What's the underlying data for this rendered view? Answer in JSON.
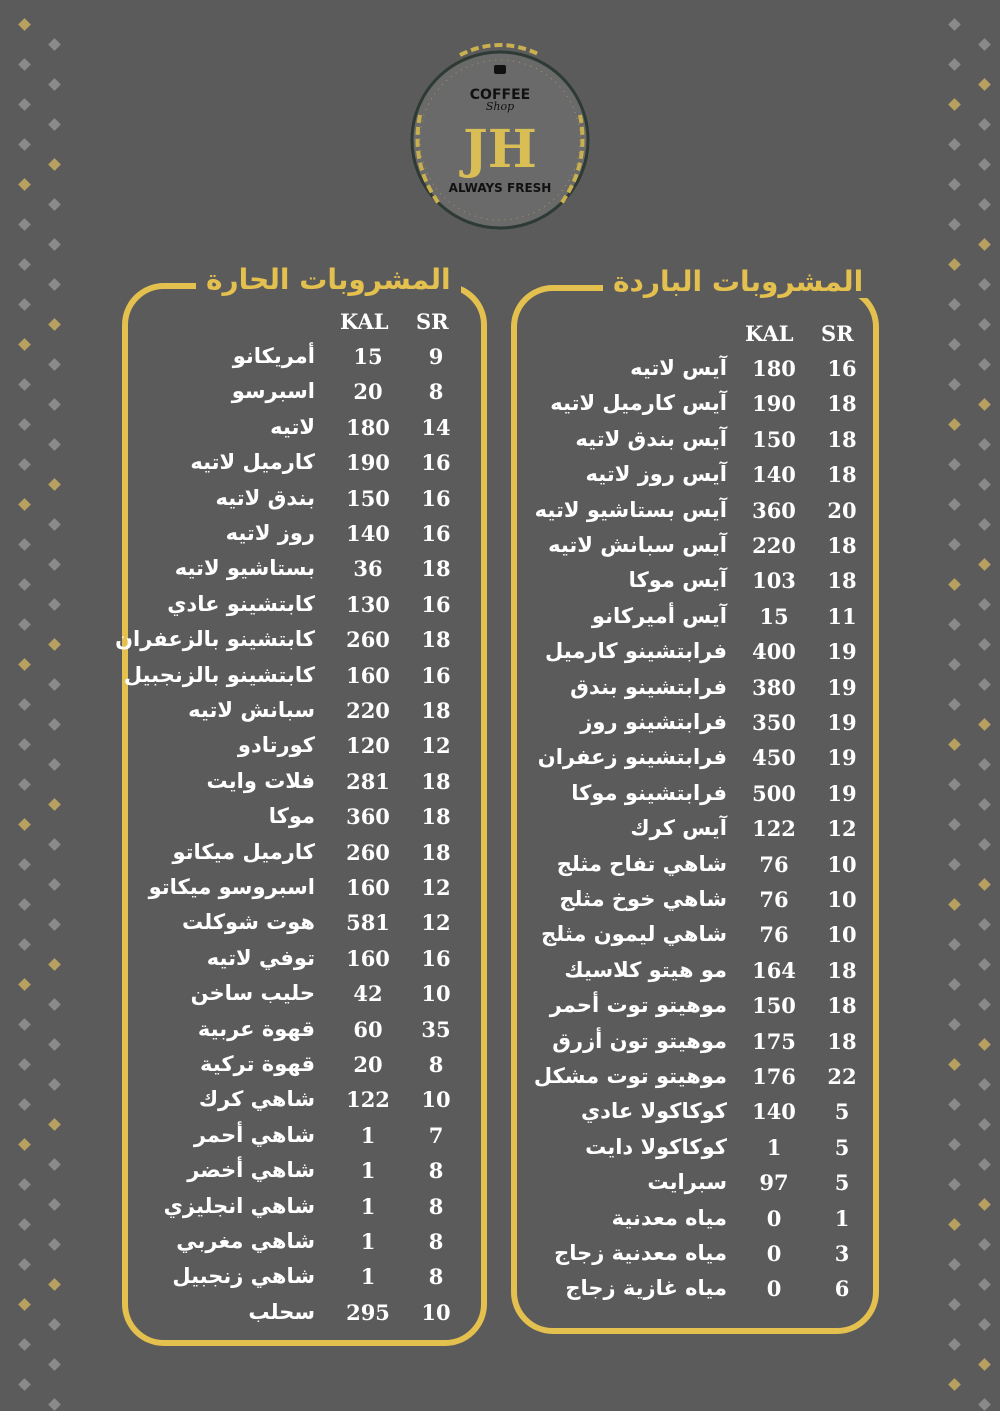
{
  "logo": {
    "top_text": "COFFEE",
    "script_text": "Shop",
    "monogram": "JH",
    "tagline": "ALWAYS FRESH",
    "icon": "coffee-cup-icon"
  },
  "colors": {
    "background": "#5b5b5b",
    "accent": "#e4c04e",
    "text": "#ffffff"
  },
  "columns": {
    "kal": "KAL",
    "sr": "SR"
  },
  "hot": {
    "title": "المشروبات الحارة",
    "items": [
      {
        "name": "أمريكانو",
        "kal": "15",
        "sr": "9"
      },
      {
        "name": "اسبرسو",
        "kal": "20",
        "sr": "8"
      },
      {
        "name": "لاتيه",
        "kal": "180",
        "sr": "14"
      },
      {
        "name": "كارميل لاتيه",
        "kal": "190",
        "sr": "16"
      },
      {
        "name": "بندق لاتيه",
        "kal": "150",
        "sr": "16"
      },
      {
        "name": "روز لاتيه",
        "kal": "140",
        "sr": "16"
      },
      {
        "name": "بستاشيو لاتيه",
        "kal": "36",
        "sr": "18"
      },
      {
        "name": "كابتشينو عادي",
        "kal": "130",
        "sr": "16"
      },
      {
        "name": "كابتشينو بالزعفران",
        "kal": "260",
        "sr": "18"
      },
      {
        "name": "كابتشينو بالزنجبيل",
        "kal": "160",
        "sr": "16"
      },
      {
        "name": "سبانش لاتيه",
        "kal": "220",
        "sr": "18"
      },
      {
        "name": "كورتادو",
        "kal": "120",
        "sr": "12"
      },
      {
        "name": "فلات وايت",
        "kal": "281",
        "sr": "18"
      },
      {
        "name": "موكا",
        "kal": "360",
        "sr": "18"
      },
      {
        "name": "كارميل ميكاتو",
        "kal": "260",
        "sr": "18"
      },
      {
        "name": "اسبروسو ميكاتو",
        "kal": "160",
        "sr": "12"
      },
      {
        "name": "هوت شوكلت",
        "kal": "581",
        "sr": "12"
      },
      {
        "name": "توفي لاتيه",
        "kal": "160",
        "sr": "16"
      },
      {
        "name": "حليب ساخن",
        "kal": "42",
        "sr": "10"
      },
      {
        "name": "قهوة عربية",
        "kal": "60",
        "sr": "35"
      },
      {
        "name": "قهوة تركية",
        "kal": "20",
        "sr": "8"
      },
      {
        "name": "شاهي كرك",
        "kal": "122",
        "sr": "10"
      },
      {
        "name": "شاهي أحمر",
        "kal": "1",
        "sr": "7"
      },
      {
        "name": "شاهي أخضر",
        "kal": "1",
        "sr": "8"
      },
      {
        "name": "شاهي انجليزي",
        "kal": "1",
        "sr": "8"
      },
      {
        "name": "شاهي مغربي",
        "kal": "1",
        "sr": "8"
      },
      {
        "name": "شاهي زنجبيل",
        "kal": "1",
        "sr": "8"
      },
      {
        "name": "سحلب",
        "kal": "295",
        "sr": "10"
      }
    ]
  },
  "cold": {
    "title": "المشروبات الباردة",
    "items": [
      {
        "name": "آيس لاتيه",
        "kal": "180",
        "sr": "16"
      },
      {
        "name": "آيس كارميل لاتيه",
        "kal": "190",
        "sr": "18"
      },
      {
        "name": "آيس بندق لاتيه",
        "kal": "150",
        "sr": "18"
      },
      {
        "name": "آيس روز لاتيه",
        "kal": "140",
        "sr": "18"
      },
      {
        "name": "آيس بستاشيو لاتيه",
        "kal": "360",
        "sr": "20"
      },
      {
        "name": "آيس سبانش لاتيه",
        "kal": "220",
        "sr": "18"
      },
      {
        "name": "آيس موكا",
        "kal": "103",
        "sr": "18"
      },
      {
        "name": "آيس أميركانو",
        "kal": "15",
        "sr": "11"
      },
      {
        "name": "فرابتشينو كارميل",
        "kal": "400",
        "sr": "19"
      },
      {
        "name": "فرابتشينو  بندق",
        "kal": "380",
        "sr": "19"
      },
      {
        "name": "فرابتشينو روز",
        "kal": "350",
        "sr": "19"
      },
      {
        "name": "فرابتشينو  زعفران",
        "kal": "450",
        "sr": "19"
      },
      {
        "name": "فرابتشينو موكا",
        "kal": "500",
        "sr": "19"
      },
      {
        "name": "آيس كرك",
        "kal": "122",
        "sr": "12"
      },
      {
        "name": "شاهي تفاح مثلج",
        "kal": "76",
        "sr": "10"
      },
      {
        "name": "شاهي خوخ مثلج",
        "kal": "76",
        "sr": "10"
      },
      {
        "name": "شاهي ليمون مثلج",
        "kal": "76",
        "sr": "10"
      },
      {
        "name": "مو هيتو كلاسيك",
        "kal": "164",
        "sr": "18"
      },
      {
        "name": "موهيتو توت أحمر",
        "kal": "150",
        "sr": "18"
      },
      {
        "name": "موهيتو تون أزرق",
        "kal": "175",
        "sr": "18"
      },
      {
        "name": "موهيتو توت مشكل",
        "kal": "176",
        "sr": "22"
      },
      {
        "name": "كوكاكولا عادي",
        "kal": "140",
        "sr": "5"
      },
      {
        "name": "كوكاكولا دايت",
        "kal": "1",
        "sr": "5"
      },
      {
        "name": "سبرايت",
        "kal": "97",
        "sr": "5"
      },
      {
        "name": "مياه معدنية",
        "kal": "0",
        "sr": "1"
      },
      {
        "name": "مياه معدنية زجاج",
        "kal": "0",
        "sr": "3"
      },
      {
        "name": "مياه غازية زجاج",
        "kal": "0",
        "sr": "6"
      }
    ]
  }
}
